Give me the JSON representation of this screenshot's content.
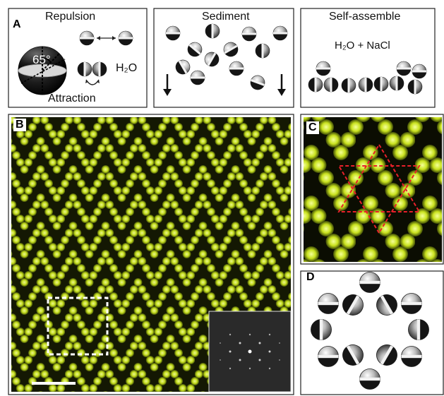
{
  "figure": {
    "panel_a": {
      "letter": "A",
      "repulsion_label": "Repulsion",
      "attraction_label": "Attraction",
      "angle_label": "65°",
      "solvent_label": "H₂O"
    },
    "panel_a2": {
      "title": "Sediment"
    },
    "panel_a3": {
      "title": "Self-assemble",
      "solvent_label": "H₂O + NaCl"
    },
    "panel_b": {
      "letter": "B"
    },
    "panel_c": {
      "letter": "C"
    },
    "panel_d": {
      "letter": "D"
    },
    "colors": {
      "lattice_bg": "#0b0d02",
      "lattice_bright": "#c8e21c",
      "lattice_glow": "#eaff60",
      "overlay_red": "#e8202a",
      "sphere_dark": "#1a1a1a",
      "sphere_light": "#e8e8e8"
    }
  }
}
